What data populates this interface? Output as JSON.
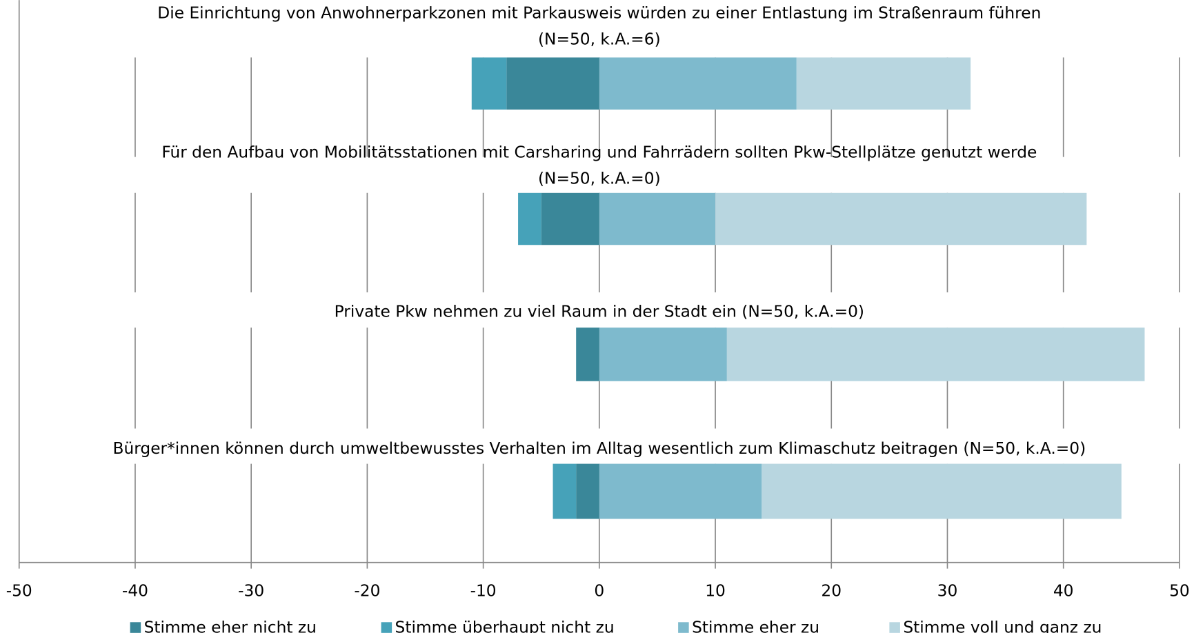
{
  "chart_data": {
    "type": "diverging-stacked-bar",
    "categories": [
      [
        "Die Einrichtung von Anwohnerparkzonen mit Parkausweis würden zu einer Entlastung im Straßenraum führen",
        "(N=50, k.A.=6)"
      ],
      [
        "Für den Aufbau von Mobilitätsstationen mit Carsharing und Fahrrädern sollten Pkw-Stellplätze genutzt werde",
        "(N=50, k.A.=0)"
      ],
      [
        "Private Pkw nehmen zu viel Raum in der Stadt ein (N=50, k.A.=0)"
      ],
      [
        "Bürger*innen können durch umweltbewusstes Verhalten im Alltag wesentlich zum Klimaschutz beitragen (N=50, k.A.=0)"
      ]
    ],
    "series": [
      {
        "name": "Stimme eher nicht zu",
        "color": "#3a8799",
        "values": [
          -8,
          -5,
          -2,
          -2
        ]
      },
      {
        "name": "Stimme überhaupt nicht zu",
        "color": "#46a2b9",
        "values": [
          -3,
          -2,
          0,
          -2
        ]
      },
      {
        "name": "Stimme eher zu",
        "color": "#7ebacd",
        "values": [
          17,
          10,
          11,
          14
        ]
      },
      {
        "name": "Stimme voll und ganz zu",
        "color": "#b8d6e0",
        "values": [
          15,
          32,
          36,
          31
        ]
      }
    ],
    "xlim": [
      -50,
      50
    ],
    "xticks": [
      -50,
      -40,
      -30,
      -20,
      -10,
      0,
      10,
      20,
      30,
      40,
      50
    ],
    "grid": true,
    "legend": "bottom"
  }
}
